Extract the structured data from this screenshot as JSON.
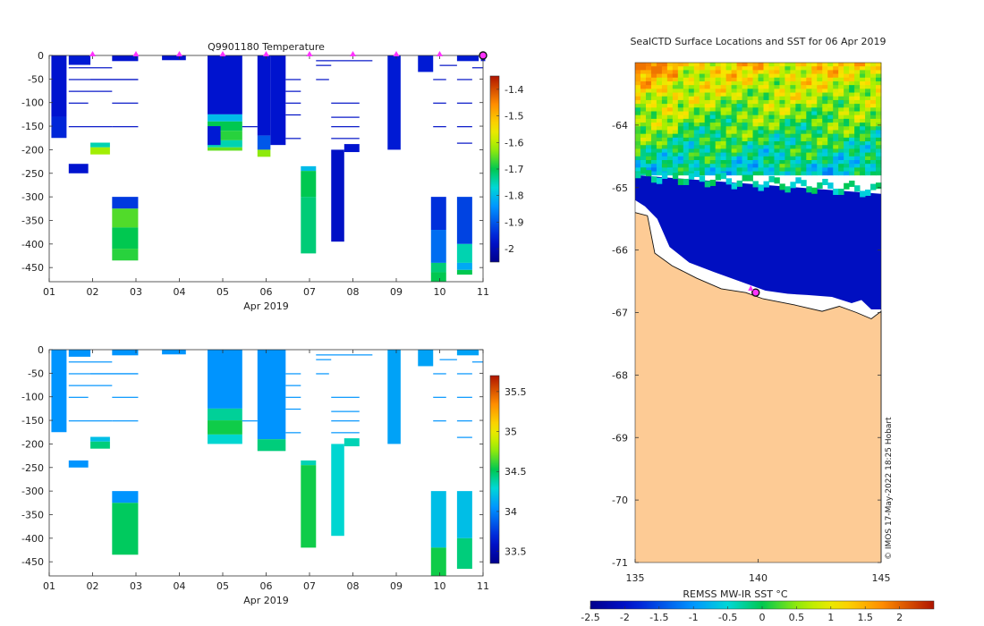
{
  "chart_data": [
    {
      "type": "heatmap",
      "title": "Q9901180  Temperature",
      "xlabel": "Apr 2019",
      "ylabel": "",
      "xlim": [
        1,
        11
      ],
      "ylim": [
        -480,
        0
      ],
      "x_tick_labels": [
        "01",
        "02",
        "03",
        "04",
        "05",
        "06",
        "07",
        "08",
        "09",
        "10",
        "11"
      ],
      "y_ticks": [
        0,
        -50,
        -100,
        -150,
        -200,
        -250,
        -300,
        -350,
        -400,
        -450
      ],
      "colorbar": {
        "range": [
          -2.05,
          -1.35
        ],
        "ticks": [
          -1.4,
          -1.5,
          -1.6,
          -1.7,
          -1.8,
          -1.9,
          -2
        ]
      },
      "surface_markers_day": [
        2,
        3,
        4,
        5,
        6,
        7,
        8,
        9,
        10
      ],
      "profiles": [
        {
          "x0": 1.05,
          "x1": 1.4,
          "segments": [
            [
              0,
              -130,
              -1.97
            ],
            [
              -130,
              -175,
              -1.95
            ]
          ]
        },
        {
          "x0": 1.45,
          "x1": 1.95,
          "segments": [
            [
              0,
              -20,
              -1.96
            ]
          ]
        },
        {
          "x0": 1.95,
          "x1": 2.4,
          "segments": [
            [
              -185,
              -195,
              -1.75
            ],
            [
              -195,
              -210,
              -1.62
            ]
          ]
        },
        {
          "x0": 1.45,
          "x1": 1.9,
          "segments": [
            [
              -230,
              -250,
              -1.97
            ]
          ]
        },
        {
          "x0": 2.45,
          "x1": 3.05,
          "segments": [
            [
              0,
              -12,
              -1.97
            ]
          ]
        },
        {
          "x0": 2.45,
          "x1": 3.05,
          "segments": [
            [
              -300,
              -325,
              -1.93
            ],
            [
              -325,
              -365,
              -1.66
            ],
            [
              -365,
              -410,
              -1.7
            ],
            [
              -410,
              -435,
              -1.68
            ]
          ]
        },
        {
          "x0": 3.6,
          "x1": 4.15,
          "segments": [
            [
              0,
              -10,
              -1.97
            ]
          ]
        },
        {
          "x0": 4.65,
          "x1": 5.45,
          "segments": [
            [
              0,
              -125,
              -1.97
            ],
            [
              -125,
              -140,
              -1.8
            ],
            [
              -140,
              -160,
              -1.7
            ],
            [
              -160,
              -180,
              -1.68
            ],
            [
              -180,
              -195,
              -1.75
            ],
            [
              -195,
              -202,
              -1.65
            ]
          ]
        },
        {
          "x0": 4.65,
          "x1": 4.95,
          "segments": [
            [
              -150,
              -190,
              -1.96
            ]
          ]
        },
        {
          "x0": 5.8,
          "x1": 6.1,
          "segments": [
            [
              0,
              -170,
              -1.97
            ],
            [
              -170,
              -200,
              -1.9
            ],
            [
              -200,
              -215,
              -1.63
            ]
          ]
        },
        {
          "x0": 6.1,
          "x1": 6.45,
          "segments": [
            [
              0,
              -190,
              -1.97
            ]
          ]
        },
        {
          "x0": 6.8,
          "x1": 7.15,
          "segments": [
            [
              -235,
              -245,
              -1.8
            ],
            [
              -245,
              -300,
              -1.7
            ],
            [
              -300,
              -420,
              -1.72
            ]
          ]
        },
        {
          "x0": 7.5,
          "x1": 7.8,
          "segments": [
            [
              -200,
              -395,
              -1.98
            ]
          ]
        },
        {
          "x0": 7.8,
          "x1": 8.15,
          "segments": [
            [
              -188,
              -205,
              -1.97
            ]
          ]
        },
        {
          "x0": 8.8,
          "x1": 9.1,
          "segments": [
            [
              0,
              -200,
              -1.96
            ]
          ]
        },
        {
          "x0": 9.5,
          "x1": 9.85,
          "segments": [
            [
              0,
              -35,
              -1.96
            ]
          ]
        },
        {
          "x0": 9.8,
          "x1": 10.15,
          "segments": [
            [
              -300,
              -370,
              -1.94
            ],
            [
              -370,
              -440,
              -1.88
            ],
            [
              -440,
              -460,
              -1.72
            ],
            [
              -460,
              -480,
              -1.7
            ]
          ]
        },
        {
          "x0": 10.4,
          "x1": 10.75,
          "segments": [
            [
              -300,
              -400,
              -1.92
            ],
            [
              -400,
              -440,
              -1.75
            ],
            [
              -440,
              -455,
              -1.82
            ],
            [
              -455,
              -465,
              -1.7
            ]
          ]
        },
        {
          "x0": 10.4,
          "x1": 10.9,
          "segments": [
            [
              0,
              -12,
              -1.96
            ]
          ]
        },
        {
          "x0": 10.95,
          "x1": 11.05,
          "segments": [
            [
              0,
              -12,
              -1.97
            ]
          ]
        }
      ]
    },
    {
      "type": "heatmap",
      "title": "",
      "xlabel": "Apr 2019",
      "ylabel": "",
      "xlim": [
        1,
        11
      ],
      "ylim": [
        -480,
        0
      ],
      "x_tick_labels": [
        "01",
        "02",
        "03",
        "04",
        "05",
        "06",
        "07",
        "08",
        "09",
        "10",
        "11"
      ],
      "y_ticks": [
        0,
        -50,
        -100,
        -150,
        -200,
        -250,
        -300,
        -350,
        -400,
        -450
      ],
      "colorbar": {
        "range": [
          33.35,
          35.7
        ],
        "ticks": [
          35.5,
          35,
          34.5,
          34,
          33.5
        ]
      },
      "profiles": [
        {
          "x0": 1.05,
          "x1": 1.4,
          "segments": [
            [
              0,
              -175,
              34.05
            ]
          ]
        },
        {
          "x0": 1.45,
          "x1": 1.95,
          "segments": [
            [
              0,
              -15,
              34.05
            ]
          ]
        },
        {
          "x0": 1.95,
          "x1": 2.4,
          "segments": [
            [
              -185,
              -195,
              34.2
            ],
            [
              -195,
              -210,
              34.45
            ]
          ]
        },
        {
          "x0": 1.45,
          "x1": 1.9,
          "segments": [
            [
              -235,
              -250,
              34.05
            ]
          ]
        },
        {
          "x0": 2.45,
          "x1": 3.05,
          "segments": [
            [
              0,
              -12,
              34.05
            ]
          ]
        },
        {
          "x0": 2.45,
          "x1": 3.05,
          "segments": [
            [
              -300,
              -325,
              34.05
            ],
            [
              -325,
              -435,
              34.5
            ]
          ]
        },
        {
          "x0": 3.6,
          "x1": 4.15,
          "segments": [
            [
              0,
              -10,
              34.05
            ]
          ]
        },
        {
          "x0": 4.65,
          "x1": 5.45,
          "segments": [
            [
              0,
              -125,
              34.05
            ],
            [
              -125,
              -150,
              34.4
            ],
            [
              -150,
              -180,
              34.55
            ],
            [
              -180,
              -200,
              34.3
            ]
          ]
        },
        {
          "x0": 5.8,
          "x1": 6.45,
          "segments": [
            [
              0,
              -190,
              34.05
            ],
            [
              -190,
              -215,
              34.45
            ]
          ]
        },
        {
          "x0": 6.8,
          "x1": 7.15,
          "segments": [
            [
              -235,
              -245,
              34.35
            ],
            [
              -245,
              -420,
              34.55
            ]
          ]
        },
        {
          "x0": 7.5,
          "x1": 7.8,
          "segments": [
            [
              -200,
              -395,
              34.3
            ]
          ]
        },
        {
          "x0": 7.8,
          "x1": 8.15,
          "segments": [
            [
              -188,
              -205,
              34.35
            ]
          ]
        },
        {
          "x0": 8.8,
          "x1": 9.1,
          "segments": [
            [
              0,
              -200,
              34.1
            ]
          ]
        },
        {
          "x0": 9.5,
          "x1": 9.85,
          "segments": [
            [
              0,
              -35,
              34.1
            ]
          ]
        },
        {
          "x0": 9.8,
          "x1": 10.15,
          "segments": [
            [
              -300,
              -420,
              34.2
            ],
            [
              -420,
              -480,
              34.55
            ]
          ]
        },
        {
          "x0": 10.4,
          "x1": 10.75,
          "segments": [
            [
              -300,
              -400,
              34.2
            ],
            [
              -400,
              -465,
              34.45
            ]
          ]
        },
        {
          "x0": 10.4,
          "x1": 10.9,
          "segments": [
            [
              0,
              -12,
              34.1
            ]
          ]
        }
      ]
    },
    {
      "type": "heatmap",
      "title": "SealCTD Surface Locations and SST for 06 Apr 2019",
      "xlabel": "",
      "ylabel": "",
      "xlim": [
        135,
        145
      ],
      "ylim": [
        -71,
        -63
      ],
      "x_ticks": [
        135,
        140,
        145
      ],
      "y_ticks": [
        -64,
        -65,
        -66,
        -67,
        -68,
        -69,
        -70,
        -71
      ],
      "colorbar": {
        "label": "REMSS MW-IR SST °C",
        "range": [
          -2.5,
          2.5
        ],
        "ticks": [
          -2.5,
          -2,
          -1.5,
          -1,
          -0.5,
          0,
          0.5,
          1,
          1.5,
          2
        ]
      },
      "seal_location": {
        "lon": 139.9,
        "lat": -66.68
      },
      "credit": "© IMOS 17-May-2022 18:25 Hobart"
    }
  ]
}
